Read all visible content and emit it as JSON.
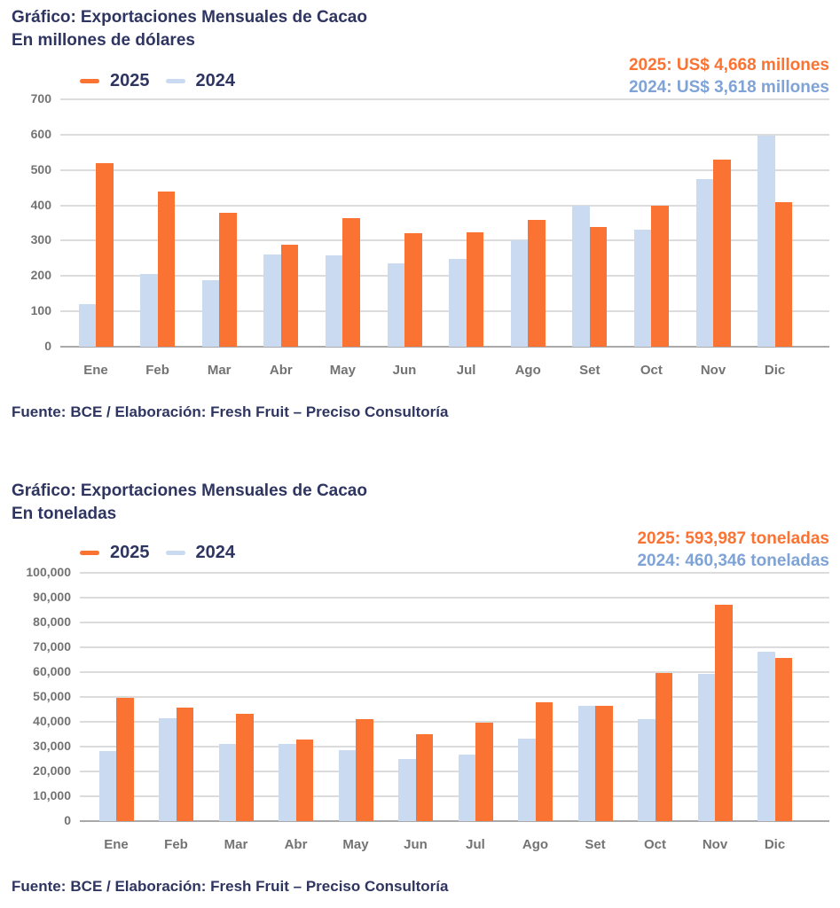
{
  "colors": {
    "orange": "#FB7333",
    "bar_blue": "#C9DAF1",
    "ann_blue": "#7FA3D6",
    "navy": "#2F3561",
    "axis_gray": "#737373",
    "grid": "#DCDCDC"
  },
  "chart_data": [
    {
      "type": "bar",
      "title_prefix": "Gráfico:",
      "title": "Exportaciones Mensuales de Cacao",
      "subtitle": "En millones de dólares",
      "annotation_2025": "2025: US$ 4,668 millones",
      "annotation_2024": "2024: US$ 3,618 millones",
      "source_prefix": "Fuente:",
      "source": "BCE / Elaboración: Fresh Fruit – Preciso Consultoría",
      "categories": [
        "Ene",
        "Feb",
        "Mar",
        "Abr",
        "May",
        "Jun",
        "Jul",
        "Ago",
        "Set",
        "Oct",
        "Nov",
        "Dic"
      ],
      "series": [
        {
          "name": "2025",
          "color": "#FB7333",
          "values": [
            520,
            438,
            378,
            288,
            363,
            322,
            323,
            360,
            338,
            398,
            530,
            410
          ]
        },
        {
          "name": "2024",
          "color": "#C9DAF1",
          "values": [
            120,
            205,
            188,
            262,
            258,
            235,
            248,
            300,
            400,
            332,
            473,
            597
          ]
        }
      ],
      "xlabel": "",
      "ylabel": "",
      "ylim": [
        0,
        700
      ],
      "ytick_step": 100,
      "grid": true,
      "legend_position": "top-left"
    },
    {
      "type": "bar",
      "title_prefix": "Gráfico:",
      "title": "Exportaciones Mensuales de Cacao",
      "subtitle": "En toneladas",
      "annotation_2025": "2025: 593,987 toneladas",
      "annotation_2024": "2024: 460,346 toneladas",
      "source_prefix": "Fuente:",
      "source": "BCE / Elaboración: Fresh Fruit – Preciso Consultoría",
      "categories": [
        "Ene",
        "Feb",
        "Mar",
        "Abr",
        "May",
        "Jun",
        "Jul",
        "Ago",
        "Set",
        "Oct",
        "Nov",
        "Dic"
      ],
      "series": [
        {
          "name": "2025",
          "color": "#FB7333",
          "values": [
            49700,
            45600,
            43300,
            32900,
            40900,
            35100,
            39500,
            47800,
            46500,
            59800,
            87200,
            65687
          ]
        },
        {
          "name": "2024",
          "color": "#C9DAF1",
          "values": [
            28200,
            41500,
            31200,
            30900,
            28600,
            24900,
            26800,
            33200,
            46600,
            41100,
            59300,
            68046
          ]
        }
      ],
      "xlabel": "",
      "ylabel": "",
      "ylim": [
        0,
        100000
      ],
      "ytick_step": 10000,
      "grid": true,
      "legend_position": "top-left"
    }
  ]
}
